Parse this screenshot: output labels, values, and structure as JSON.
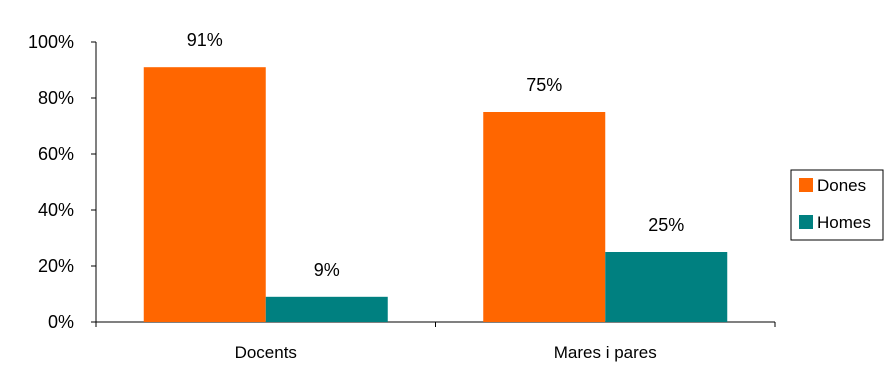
{
  "chart_data": {
    "type": "bar",
    "categories": [
      "Docents",
      "Mares i pares"
    ],
    "series": [
      {
        "name": "Dones",
        "values": [
          91,
          75
        ],
        "color": "#ff6600"
      },
      {
        "name": "Homes",
        "values": [
          9,
          25
        ],
        "color": "#008080"
      }
    ],
    "data_labels": [
      [
        "91%",
        "75%"
      ],
      [
        "9%",
        "25%"
      ]
    ],
    "y_ticks": [
      "0%",
      "20%",
      "40%",
      "60%",
      "80%",
      "100%"
    ],
    "ylim": [
      0,
      100
    ],
    "y_unit": "%",
    "grid": false,
    "legend_position": "right"
  }
}
